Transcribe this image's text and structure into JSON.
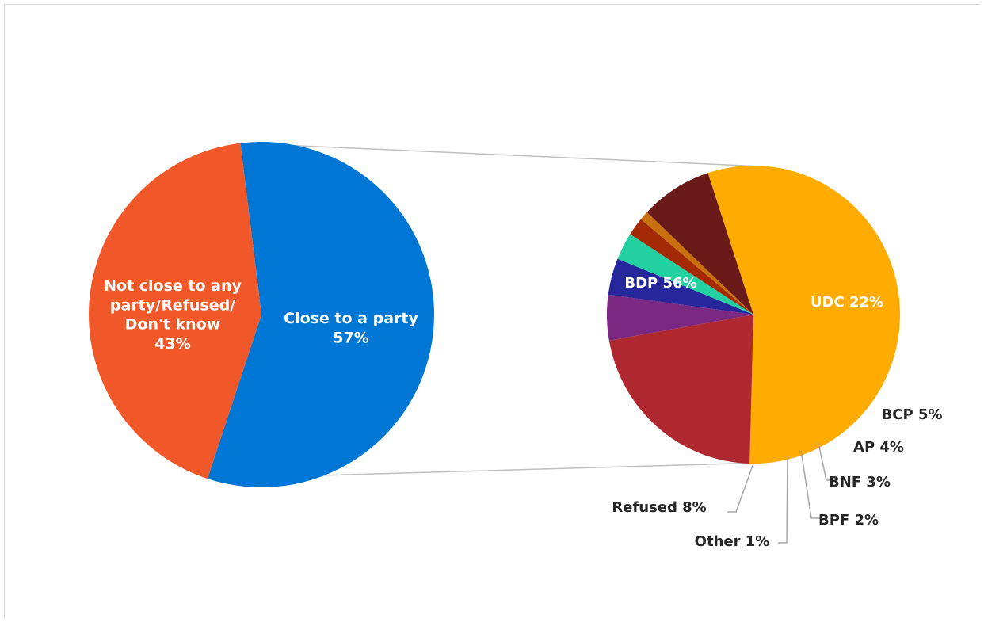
{
  "chart_data": [
    {
      "type": "pie",
      "title": "",
      "slices": [
        {
          "name": "Close to a party",
          "value": 57,
          "label": "57%",
          "label_lines": [
            "Close to a party",
            "57%"
          ],
          "color": "#0077d4"
        },
        {
          "name": "Not close to any party/Refused/Don't know",
          "value": 43,
          "label": "43%",
          "label_lines": [
            "Not close to any",
            "party/Refused/",
            "Don't know",
            "43%"
          ],
          "color": "#f0582a"
        }
      ]
    },
    {
      "type": "pie",
      "title": "",
      "slices": [
        {
          "name": "BDP",
          "value": 56,
          "label": "BDP 56%",
          "color": "#ffab00"
        },
        {
          "name": "UDC",
          "value": 22,
          "label": "UDC 22%",
          "color": "#b0282f"
        },
        {
          "name": "BCP",
          "value": 5,
          "label": "BCP 5%",
          "color": "#7a2882"
        },
        {
          "name": "AP",
          "value": 4,
          "label": "AP 4%",
          "color": "#26279c"
        },
        {
          "name": "BNF",
          "value": 3,
          "label": "BNF 3%",
          "color": "#23d1a0"
        },
        {
          "name": "BPF",
          "value": 2,
          "label": "BPF 2%",
          "color": "#a32a05"
        },
        {
          "name": "Other",
          "value": 1,
          "label": "Other 1%",
          "color": "#c9700e"
        },
        {
          "name": "Refused",
          "value": 8,
          "label": "Refused 8%",
          "color": "#6b1a1a"
        }
      ]
    }
  ],
  "colors": {
    "connector": "#bfbfbf",
    "leader": "#a6a6a6",
    "outer_label": "#262626",
    "inner_label": "#ffffff"
  }
}
